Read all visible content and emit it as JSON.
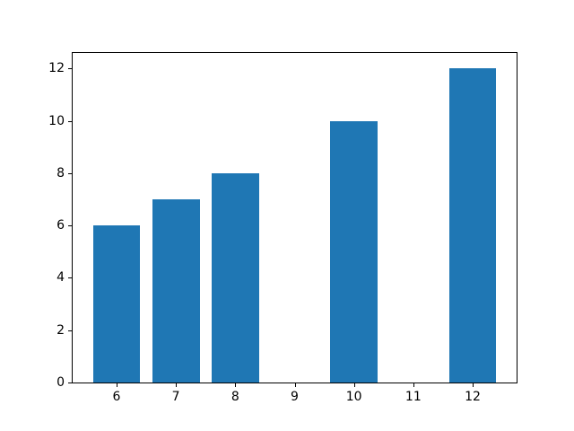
{
  "chart_data": {
    "type": "bar",
    "x": [
      6,
      7,
      8,
      10,
      12
    ],
    "values": [
      6,
      7,
      8,
      10,
      12
    ],
    "bar_width": 0.8,
    "bar_color": "#1f77b4",
    "xticks": [
      6,
      7,
      8,
      9,
      10,
      11,
      12
    ],
    "yticks": [
      0,
      2,
      4,
      6,
      8,
      10,
      12
    ],
    "xlim": [
      5.26,
      12.74
    ],
    "ylim": [
      0,
      12.6
    ],
    "title": "",
    "xlabel": "",
    "ylabel": "",
    "grid": false,
    "legend_position": null,
    "background_color": "#ffffff",
    "spine_color": "#000000"
  }
}
